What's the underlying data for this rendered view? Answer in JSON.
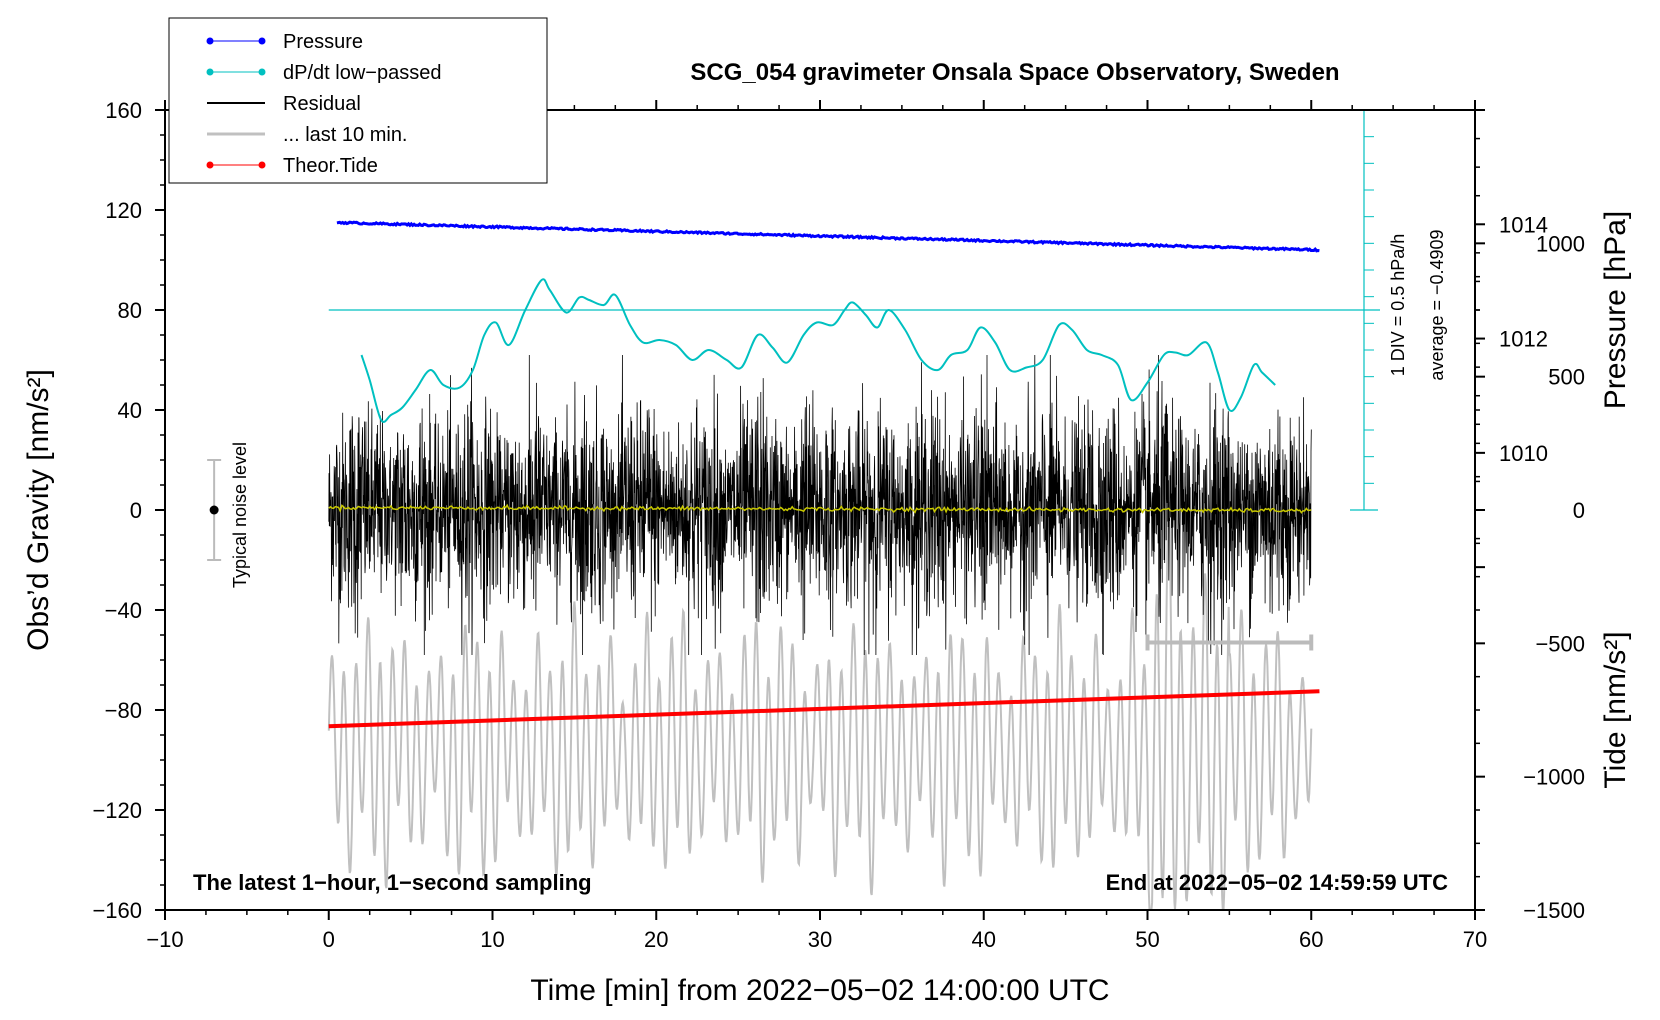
{
  "chart_data": {
    "type": "line",
    "title": "SCG_054 gravimeter Onsala Space Observatory, Sweden",
    "xlabel": "Time [min] from 2022−05−02 14:00:00 UTC",
    "ylabel": "Obs’d Gravity [nm/s²]",
    "xlim": [
      -10,
      70
    ],
    "ylim": [
      -160,
      160
    ],
    "x_ticks": [
      "−10",
      "0",
      "10",
      "20",
      "30",
      "40",
      "50",
      "60",
      "70"
    ],
    "y_ticks": [
      "−160",
      "−120",
      "−80",
      "−40",
      "0",
      "40",
      "80",
      "120",
      "160"
    ],
    "pressure_axis": {
      "label": "Pressure [hPa]",
      "ticks": [
        "1010",
        "1012",
        "1014"
      ],
      "range_hpa": [
        1002,
        1016
      ]
    },
    "tide_axis": {
      "label": "Tide [nm/s²]",
      "ticks": [
        "1000",
        "500",
        "0",
        "−500",
        "−1000",
        "−1500"
      ],
      "range": [
        -1500,
        1500
      ]
    },
    "dpdt_scale": {
      "line1": "1 DIV = 0.5 hPa/h",
      "line2": "average = −0.4909",
      "reference_value": 80
    },
    "noise_indicator": {
      "label": "Typical noise level",
      "x": -7,
      "center": 0,
      "half_range": 20
    },
    "last10_bar": {
      "x_start": 50,
      "x_end": 60,
      "y": -53
    },
    "series": [
      {
        "name": "Pressure",
        "color": "#0000ff",
        "x_start": 0.5,
        "x_end": 60.5,
        "y_start": 115,
        "y_end": 104
      },
      {
        "name": "dP/dt low−passed",
        "color": "#00c0c0",
        "x": [
          2,
          2.5,
          3.2,
          3.8,
          4.5,
          5.3,
          6.2,
          7,
          8,
          8.8,
          9.5,
          10.2,
          11,
          12,
          13,
          13.5,
          14.5,
          15.3,
          15.9,
          16.8,
          17.5,
          18.4,
          19.2,
          20.2,
          21.2,
          22.2,
          23.2,
          24.3,
          25.2,
          26.2,
          27.1,
          28,
          29,
          29.8,
          30.8,
          31.5,
          32,
          32.8,
          33.5,
          34.2,
          35.2,
          36.2,
          37.2,
          38,
          39,
          39.8,
          40.7,
          41.6,
          42.6,
          43.6,
          44.6,
          45.4,
          46.3,
          47.2,
          48.2,
          49,
          50,
          51,
          51.7,
          52.5,
          53.6,
          54.3,
          55,
          55.7,
          56.5,
          57,
          57.8
        ],
        "y": [
          62,
          52,
          36,
          38,
          41,
          48,
          56,
          50,
          49,
          56,
          70,
          75,
          66,
          80,
          92,
          88,
          79,
          85,
          84,
          82,
          86,
          74,
          67,
          68,
          66,
          60,
          64,
          60,
          57,
          70,
          65,
          59,
          70,
          75,
          74,
          80,
          83,
          78,
          73,
          80,
          72,
          60,
          56,
          62,
          64,
          73,
          67,
          56,
          57,
          60,
          74,
          72,
          64,
          62,
          58,
          44,
          51,
          62,
          63,
          62,
          67,
          55,
          40,
          45,
          58,
          55,
          50
        ]
      },
      {
        "name": "Residual",
        "color": "#000000",
        "x_start": 0,
        "x_end": 60,
        "amplitude": 45
      },
      {
        "name": "... last 10 min.",
        "color": "#c0c0c0",
        "x_start": 0,
        "x_end": 60,
        "center": -95,
        "amplitude": 55
      },
      {
        "name": "Theor.Tide",
        "color": "#ff0000",
        "x_start": 0,
        "x_end": 60.5,
        "y_start": -86.5,
        "y_end": -72.5
      }
    ],
    "smoothed_residual_color": "#c8c800"
  },
  "legend": {
    "entries": [
      {
        "label": "Pressure",
        "color": "#0000ff",
        "marker": true,
        "width": 1
      },
      {
        "label": "dP/dt low−passed",
        "color": "#00c0c0",
        "marker": true,
        "width": 1
      },
      {
        "label": "Residual",
        "color": "#000000",
        "marker": false,
        "width": 2
      },
      {
        "label": "... last 10 min.",
        "color": "#c0c0c0",
        "marker": false,
        "width": 3
      },
      {
        "label": "Theor.Tide",
        "color": "#ff0000",
        "marker": true,
        "width": 1
      }
    ]
  },
  "notes": {
    "bottom_left": "The latest 1−hour, 1−second sampling",
    "bottom_right": "End at 2022−05−02 14:59:59 UTC"
  }
}
